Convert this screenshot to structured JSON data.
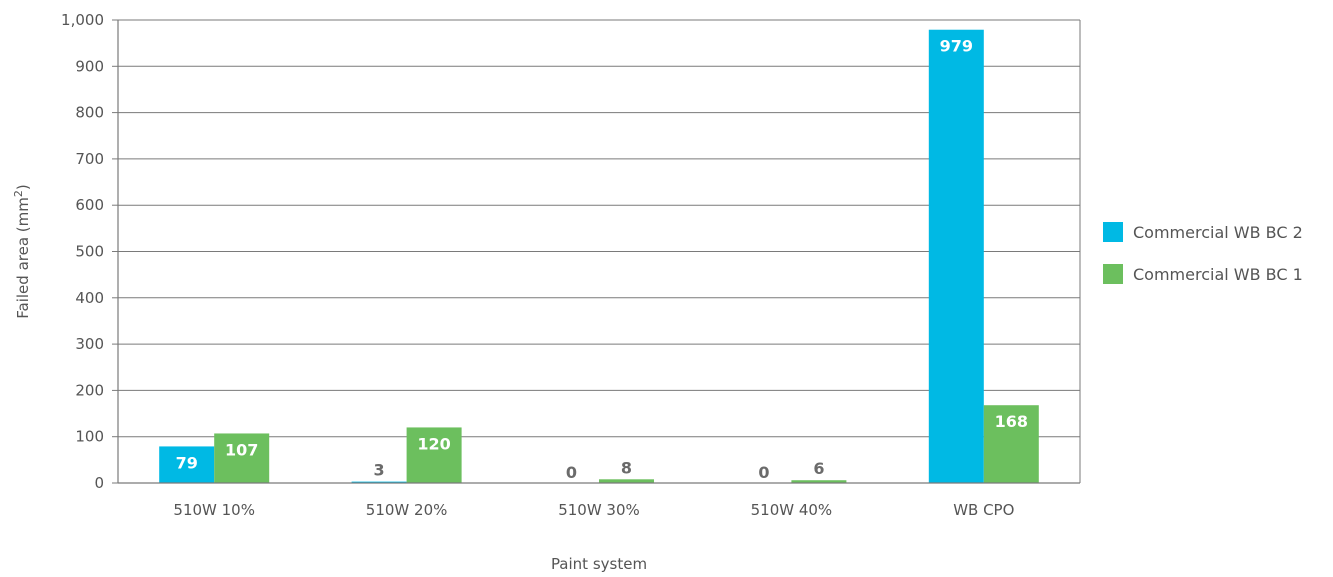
{
  "chart_data": {
    "type": "bar",
    "title": "",
    "xlabel": "Paint system",
    "ylabel": "Failed area (mm²)",
    "ylim": [
      0,
      1000
    ],
    "yticks": [
      0,
      100,
      200,
      300,
      400,
      500,
      600,
      700,
      800,
      900,
      1000
    ],
    "ytick_labels": [
      "0",
      "100",
      "200",
      "300",
      "400",
      "500",
      "600",
      "700",
      "800",
      "900",
      "1,000"
    ],
    "categories": [
      "510W 10%",
      "510W 20%",
      "510W 30%",
      "510W 40%",
      "WB CPO"
    ],
    "series": [
      {
        "name": "Commercial WB BC 2",
        "color": "#00b9e4",
        "values": [
          79,
          3,
          0,
          0,
          979
        ]
      },
      {
        "name": "Commercial WB BC 1",
        "color": "#6cbf5e",
        "values": [
          107,
          120,
          8,
          6,
          168
        ]
      }
    ],
    "grid": true,
    "legend_position": "right"
  }
}
